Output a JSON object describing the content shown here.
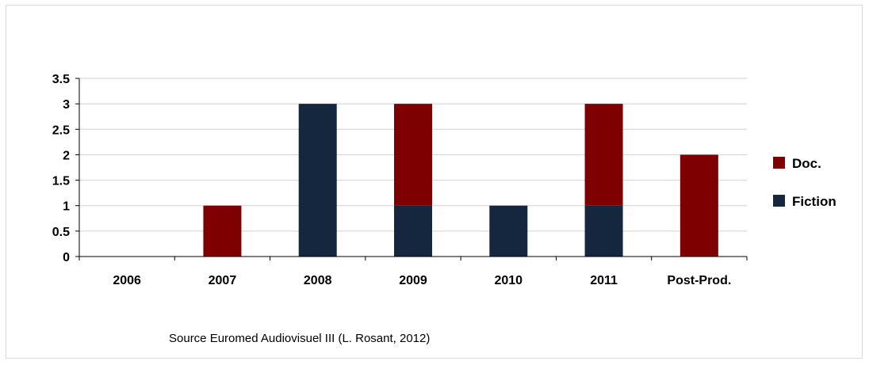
{
  "chart_data": {
    "type": "bar",
    "stacked": true,
    "categories": [
      "2006",
      "2007",
      "2008",
      "2009",
      "2010",
      "2011",
      "Post-Prod."
    ],
    "series": [
      {
        "name": "Fiction",
        "color": "#14273f",
        "values": [
          0,
          0,
          3,
          1,
          1,
          1,
          0
        ]
      },
      {
        "name": "Doc.",
        "color": "#7f0000",
        "values": [
          0,
          1,
          0,
          2,
          0,
          2,
          2
        ]
      }
    ],
    "legend_order": [
      "Doc.",
      "Fiction"
    ],
    "legend_position": "right",
    "ylim": [
      0,
      3.5
    ],
    "yticks": [
      "0",
      "0.5",
      "1",
      "1.5",
      "2",
      "2.5",
      "3",
      "3.5"
    ],
    "grid": true
  },
  "source_note": "Source Euromed Audiovisuel III (L. Rosant, 2012)"
}
